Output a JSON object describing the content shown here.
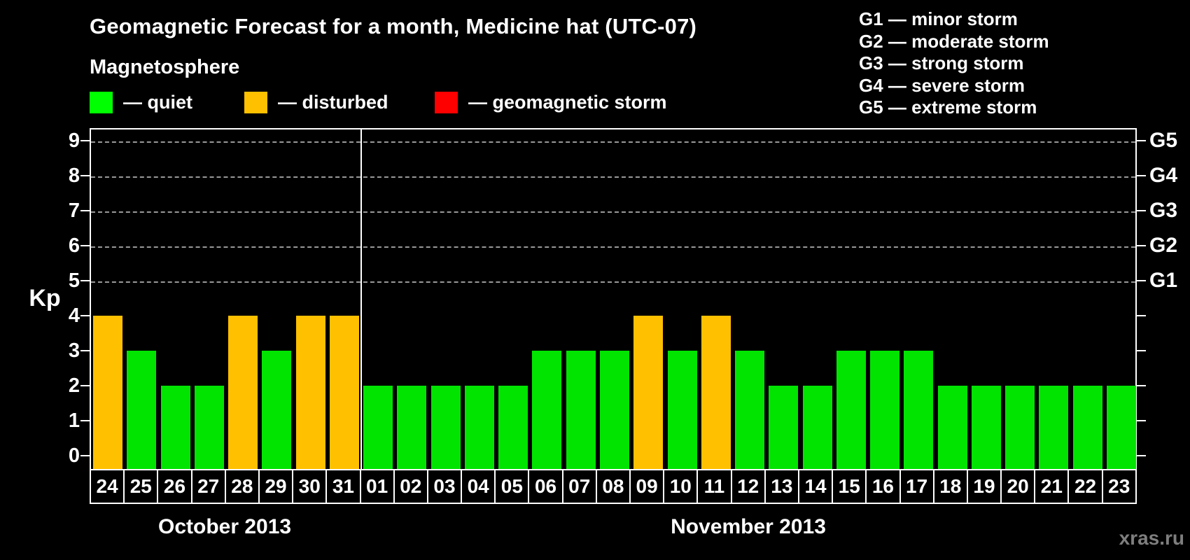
{
  "title": "Geomagnetic Forecast for a month, Medicine hat (UTC-07)",
  "watermark": "xras.ru",
  "legend": {
    "heading": "Magnetosphere",
    "items": [
      {
        "state": "quiet",
        "label": "— quiet",
        "color": "#00ff00"
      },
      {
        "state": "disturbed",
        "label": "— disturbed",
        "color": "#ffc000"
      },
      {
        "state": "storm",
        "label": "— geomagnetic storm",
        "color": "#ff0000"
      }
    ]
  },
  "storm_scale": [
    "G1 — minor storm",
    "G2 — moderate storm",
    "G3 — strong storm",
    "G4 — severe storm",
    "G5 — extreme storm"
  ],
  "chart_data": {
    "type": "bar",
    "title": "Geomagnetic Forecast for a month, Medicine hat (UTC-07)",
    "ylabel": "Kp",
    "ylim": [
      0,
      9
    ],
    "yticks": [
      0,
      1,
      2,
      3,
      4,
      5,
      6,
      7,
      8,
      9
    ],
    "gridlines_at_kp": [
      5,
      6,
      7,
      8,
      9
    ],
    "grid": "dashed horizontal lines at Kp 5-9 only",
    "legend_position": "top",
    "right_axis_labels": [
      {
        "kp": 5,
        "label": "G1"
      },
      {
        "kp": 6,
        "label": "G2"
      },
      {
        "kp": 7,
        "label": "G3"
      },
      {
        "kp": 8,
        "label": "G4"
      },
      {
        "kp": 9,
        "label": "G5"
      }
    ],
    "state_colors": {
      "quiet": "#00e400",
      "disturbed": "#ffc000",
      "storm": "#ff0000"
    },
    "months": [
      {
        "label": "October 2013",
        "count": 8
      },
      {
        "label": "November 2013",
        "count": 23
      }
    ],
    "bars": [
      {
        "day": "24",
        "kp": 4,
        "state": "disturbed"
      },
      {
        "day": "25",
        "kp": 3,
        "state": "quiet"
      },
      {
        "day": "26",
        "kp": 2,
        "state": "quiet"
      },
      {
        "day": "27",
        "kp": 2,
        "state": "quiet"
      },
      {
        "day": "28",
        "kp": 4,
        "state": "disturbed"
      },
      {
        "day": "29",
        "kp": 3,
        "state": "quiet"
      },
      {
        "day": "30",
        "kp": 4,
        "state": "disturbed"
      },
      {
        "day": "31",
        "kp": 4,
        "state": "disturbed"
      },
      {
        "day": "01",
        "kp": 2,
        "state": "quiet"
      },
      {
        "day": "02",
        "kp": 2,
        "state": "quiet"
      },
      {
        "day": "03",
        "kp": 2,
        "state": "quiet"
      },
      {
        "day": "04",
        "kp": 2,
        "state": "quiet"
      },
      {
        "day": "05",
        "kp": 2,
        "state": "quiet"
      },
      {
        "day": "06",
        "kp": 3,
        "state": "quiet"
      },
      {
        "day": "07",
        "kp": 3,
        "state": "quiet"
      },
      {
        "day": "08",
        "kp": 3,
        "state": "quiet"
      },
      {
        "day": "09",
        "kp": 4,
        "state": "disturbed"
      },
      {
        "day": "10",
        "kp": 3,
        "state": "quiet"
      },
      {
        "day": "11",
        "kp": 4,
        "state": "disturbed"
      },
      {
        "day": "12",
        "kp": 3,
        "state": "quiet"
      },
      {
        "day": "13",
        "kp": 2,
        "state": "quiet"
      },
      {
        "day": "14",
        "kp": 2,
        "state": "quiet"
      },
      {
        "day": "15",
        "kp": 3,
        "state": "quiet"
      },
      {
        "day": "16",
        "kp": 3,
        "state": "quiet"
      },
      {
        "day": "17",
        "kp": 3,
        "state": "quiet"
      },
      {
        "day": "18",
        "kp": 2,
        "state": "quiet"
      },
      {
        "day": "19",
        "kp": 2,
        "state": "quiet"
      },
      {
        "day": "20",
        "kp": 2,
        "state": "quiet"
      },
      {
        "day": "21",
        "kp": 2,
        "state": "quiet"
      },
      {
        "day": "22",
        "kp": 2,
        "state": "quiet"
      },
      {
        "day": "23",
        "kp": 2,
        "state": "quiet"
      }
    ]
  }
}
